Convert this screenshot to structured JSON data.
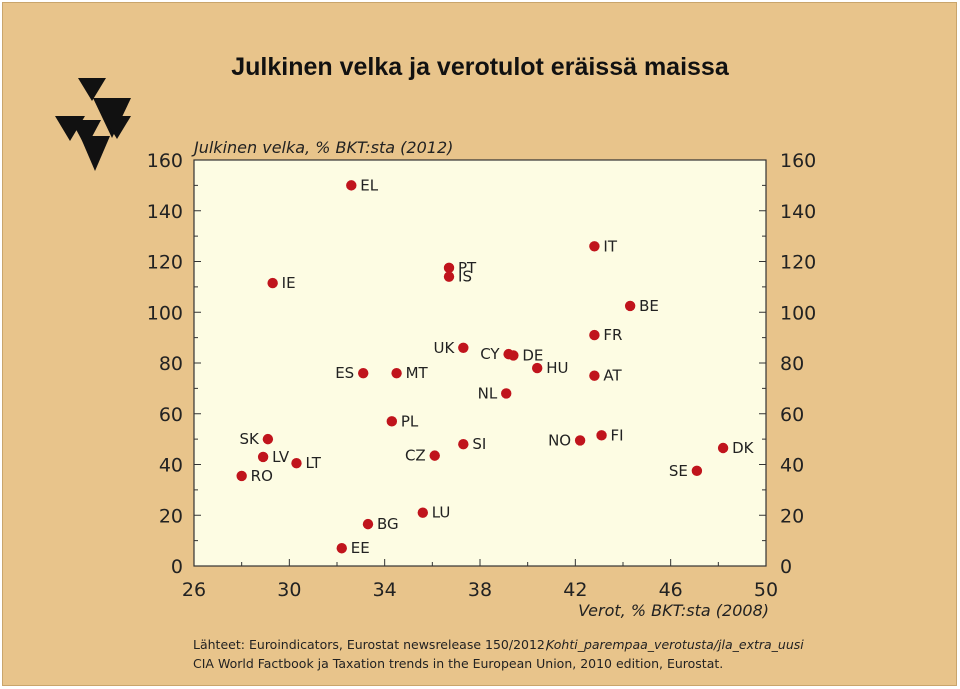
{
  "chart_data": {
    "type": "scatter",
    "title": "Julkinen velka ja verotulot eräissä maissa",
    "ylabel": "Julkinen velka, % BKT:sta (2012)",
    "xlabel": "Verot, % BKT:sta (2008)",
    "xlim": [
      26,
      50
    ],
    "ylim": [
      0,
      160
    ],
    "xticks": [
      "26",
      "30",
      "34",
      "38",
      "42",
      "46",
      "50"
    ],
    "yticks": [
      "0",
      "20",
      "40",
      "60",
      "80",
      "100",
      "120",
      "140",
      "160"
    ],
    "grid": false,
    "point_color": "#c0141c",
    "plot_background": "#fdfce3",
    "points": [
      {
        "label": "EL",
        "x": 32.6,
        "y": 150,
        "side": "right"
      },
      {
        "label": "IE",
        "x": 29.3,
        "y": 111.5,
        "side": "right"
      },
      {
        "label": "PT",
        "x": 36.7,
        "y": 117.5,
        "side": "right"
      },
      {
        "label": "IS",
        "x": 36.7,
        "y": 114,
        "side": "right"
      },
      {
        "label": "IT",
        "x": 42.8,
        "y": 126,
        "side": "right"
      },
      {
        "label": "BE",
        "x": 44.3,
        "y": 102.5,
        "side": "right"
      },
      {
        "label": "FR",
        "x": 42.8,
        "y": 91,
        "side": "right"
      },
      {
        "label": "UK",
        "x": 37.3,
        "y": 86,
        "side": "left"
      },
      {
        "label": "CY",
        "x": 39.2,
        "y": 83.5,
        "side": "left"
      },
      {
        "label": "DE",
        "x": 39.4,
        "y": 83,
        "side": "right"
      },
      {
        "label": "HU",
        "x": 40.4,
        "y": 78,
        "side": "right"
      },
      {
        "label": "ES",
        "x": 33.1,
        "y": 76,
        "side": "left"
      },
      {
        "label": "MT",
        "x": 34.5,
        "y": 76,
        "side": "right"
      },
      {
        "label": "AT",
        "x": 42.8,
        "y": 75,
        "side": "right"
      },
      {
        "label": "NL",
        "x": 39.1,
        "y": 68,
        "side": "left"
      },
      {
        "label": "PL",
        "x": 34.3,
        "y": 57,
        "side": "right"
      },
      {
        "label": "FI",
        "x": 43.1,
        "y": 51.5,
        "side": "right"
      },
      {
        "label": "SK",
        "x": 29.1,
        "y": 50,
        "side": "left"
      },
      {
        "label": "NO",
        "x": 42.2,
        "y": 49.5,
        "side": "left"
      },
      {
        "label": "SI",
        "x": 37.3,
        "y": 48,
        "side": "right"
      },
      {
        "label": "DK",
        "x": 48.2,
        "y": 46.5,
        "side": "right"
      },
      {
        "label": "CZ",
        "x": 36.1,
        "y": 43.5,
        "side": "left"
      },
      {
        "label": "LV",
        "x": 28.9,
        "y": 43,
        "side": "right"
      },
      {
        "label": "LT",
        "x": 30.3,
        "y": 40.5,
        "side": "right"
      },
      {
        "label": "SE",
        "x": 47.1,
        "y": 37.5,
        "side": "left"
      },
      {
        "label": "RO",
        "x": 28.0,
        "y": 35.5,
        "side": "right"
      },
      {
        "label": "LU",
        "x": 35.6,
        "y": 21,
        "side": "right"
      },
      {
        "label": "BG",
        "x": 33.3,
        "y": 16.5,
        "side": "right"
      },
      {
        "label": "EE",
        "x": 32.2,
        "y": 7,
        "side": "right"
      }
    ]
  },
  "sources": {
    "prefix": "Lähteet:",
    "line1": "Euroindicators, Eurostat newsrelease 150/2012,",
    "line1_link": "Kohti_parempaa_verotusta/jla_extra_uusi",
    "line2": "CIA World Factbook ja Taxation trends in the European Union, 2010 edition, Eurostat."
  },
  "logo_icon": "triangle-logo-icon"
}
